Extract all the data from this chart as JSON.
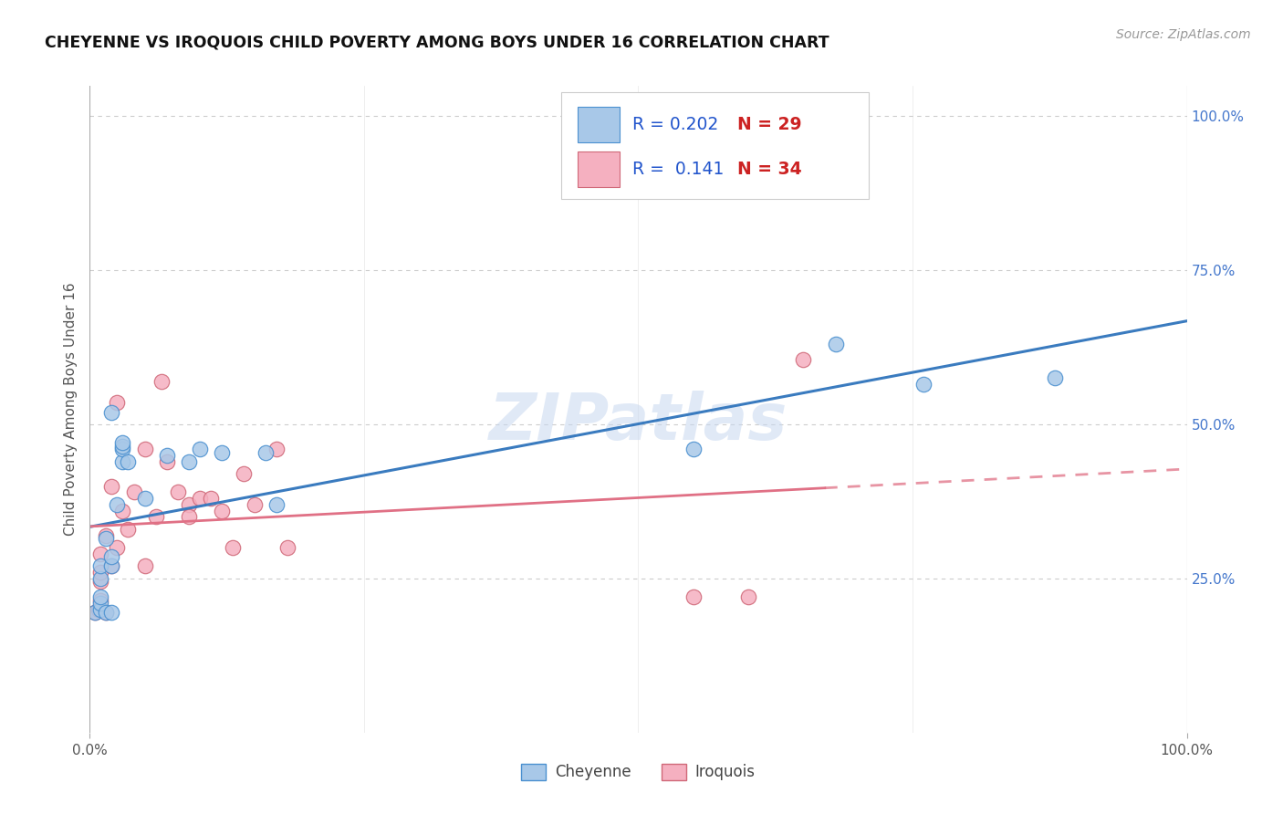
{
  "title": "CHEYENNE VS IROQUOIS CHILD POVERTY AMONG BOYS UNDER 16 CORRELATION CHART",
  "source": "Source: ZipAtlas.com",
  "ylabel": "Child Poverty Among Boys Under 16",
  "cheyenne_R": "0.202",
  "cheyenne_N": "29",
  "iroquois_R": "0.141",
  "iroquois_N": "34",
  "cheyenne_dot_color": "#a8c8e8",
  "cheyenne_edge_color": "#4a90d0",
  "iroquois_dot_color": "#f5b0c0",
  "iroquois_edge_color": "#d06878",
  "cheyenne_line_color": "#3a7bbf",
  "iroquois_line_color": "#e07085",
  "watermark": "ZIPatlas",
  "watermark_color": "#c8d8f0",
  "bg_color": "#ffffff",
  "grid_color": "#cccccc",
  "title_color": "#111111",
  "source_color": "#999999",
  "right_tick_color": "#4477cc",
  "bottom_tick_color": "#555555",
  "ytick_right": [
    "25.0%",
    "50.0%",
    "75.0%",
    "100.0%"
  ],
  "ytick_pos": [
    0.25,
    0.5,
    0.75,
    1.0
  ],
  "xtick_labels": [
    "0.0%",
    "100.0%"
  ],
  "xtick_pos": [
    0.0,
    1.0
  ],
  "xlim": [
    0.0,
    1.0
  ],
  "ylim": [
    0.0,
    1.05
  ],
  "cheyenne_x": [
    0.005,
    0.01,
    0.01,
    0.01,
    0.01,
    0.01,
    0.015,
    0.015,
    0.02,
    0.02,
    0.02,
    0.02,
    0.025,
    0.03,
    0.03,
    0.03,
    0.03,
    0.035,
    0.05,
    0.07,
    0.09,
    0.1,
    0.12,
    0.16,
    0.17,
    0.55,
    0.68,
    0.76,
    0.88
  ],
  "cheyenne_y": [
    0.195,
    0.2,
    0.21,
    0.22,
    0.25,
    0.27,
    0.195,
    0.315,
    0.195,
    0.27,
    0.285,
    0.52,
    0.37,
    0.44,
    0.46,
    0.465,
    0.47,
    0.44,
    0.38,
    0.45,
    0.44,
    0.46,
    0.455,
    0.455,
    0.37,
    0.46,
    0.63,
    0.565,
    0.575
  ],
  "iroquois_x": [
    0.005,
    0.008,
    0.01,
    0.01,
    0.01,
    0.01,
    0.015,
    0.015,
    0.02,
    0.02,
    0.025,
    0.025,
    0.03,
    0.035,
    0.04,
    0.05,
    0.05,
    0.06,
    0.065,
    0.07,
    0.08,
    0.09,
    0.09,
    0.1,
    0.11,
    0.12,
    0.13,
    0.14,
    0.15,
    0.17,
    0.18,
    0.55,
    0.6,
    0.65
  ],
  "iroquois_y": [
    0.195,
    0.2,
    0.215,
    0.245,
    0.26,
    0.29,
    0.195,
    0.32,
    0.27,
    0.4,
    0.3,
    0.535,
    0.36,
    0.33,
    0.39,
    0.27,
    0.46,
    0.35,
    0.57,
    0.44,
    0.39,
    0.37,
    0.35,
    0.38,
    0.38,
    0.36,
    0.3,
    0.42,
    0.37,
    0.46,
    0.3,
    0.22,
    0.22,
    0.605
  ],
  "legend_R_color": "#2255cc",
  "legend_N_color": "#cc2222"
}
